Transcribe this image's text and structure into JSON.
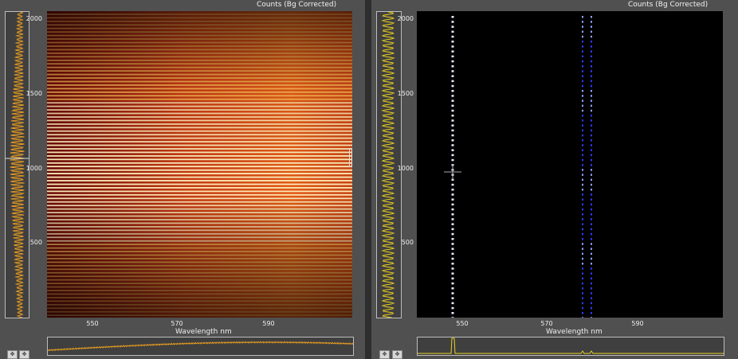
{
  "panels": [
    {
      "id": "left",
      "title": "Counts (Bg Corrected)",
      "yticks": [
        "2000",
        "1500",
        "1000",
        "500"
      ],
      "xticks": [
        "550",
        "570",
        "590"
      ],
      "xlabel": "Wavelength nm",
      "colormap": "red-yellow-white"
    },
    {
      "id": "right",
      "title": "Counts (Bg Corrected)",
      "yticks": [
        "2000",
        "1500",
        "1000",
        "500"
      ],
      "xticks": [
        "550",
        "570",
        "590"
      ],
      "xlabel": "Wavelength nm",
      "colormap": "black-blue-white"
    }
  ],
  "toolbar": {
    "pan_icon": "move-icon",
    "zoom_icon": "crosshair-icon",
    "pan_symbol": "✥",
    "zoom_symbol": "✥"
  },
  "colors": {
    "profile_line": "#f0a020",
    "profile_line_right": "#e8d020",
    "background": "#4d4d4d"
  }
}
